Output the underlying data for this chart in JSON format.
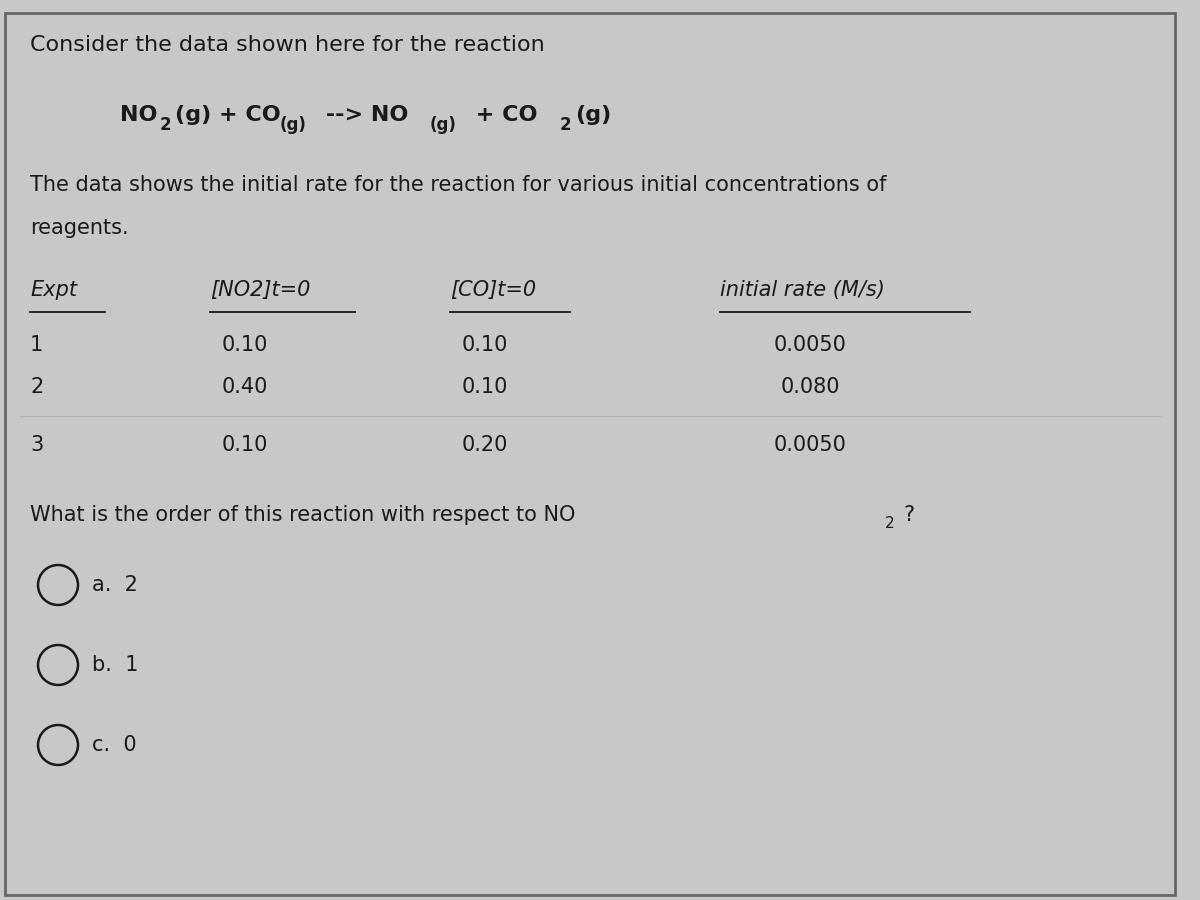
{
  "bg_color": "#c8c8c8",
  "text_color": "#1a1a1a",
  "title_line1": "Consider the data shown here for the reaction",
  "description_line1": "The data shows the initial rate for the reaction for various initial concentrations of",
  "description_line2": "reagents.",
  "header_expt": "Expt",
  "header_no2": "[NO2]t=0",
  "header_co": "[CO]t=0",
  "header_rate": "initial rate (M/s)",
  "data_rows": [
    [
      "1",
      "0.10",
      "0.10",
      "0.0050"
    ],
    [
      "2",
      "0.40",
      "0.10",
      "0.080"
    ],
    [
      "3",
      "0.10",
      "0.20",
      "0.0050"
    ]
  ],
  "question_part1": "What is the order of this reaction with respect to NO",
  "question_part2": "2",
  "question_part3": "?",
  "choices": [
    "a.  2",
    "b.  1",
    "c.  0"
  ],
  "font_size_title": 16,
  "font_size_body": 15,
  "font_size_reaction": 16,
  "font_size_reaction_sub": 12,
  "font_size_header": 15,
  "font_size_data": 15,
  "font_size_question": 15,
  "font_size_choices": 15
}
